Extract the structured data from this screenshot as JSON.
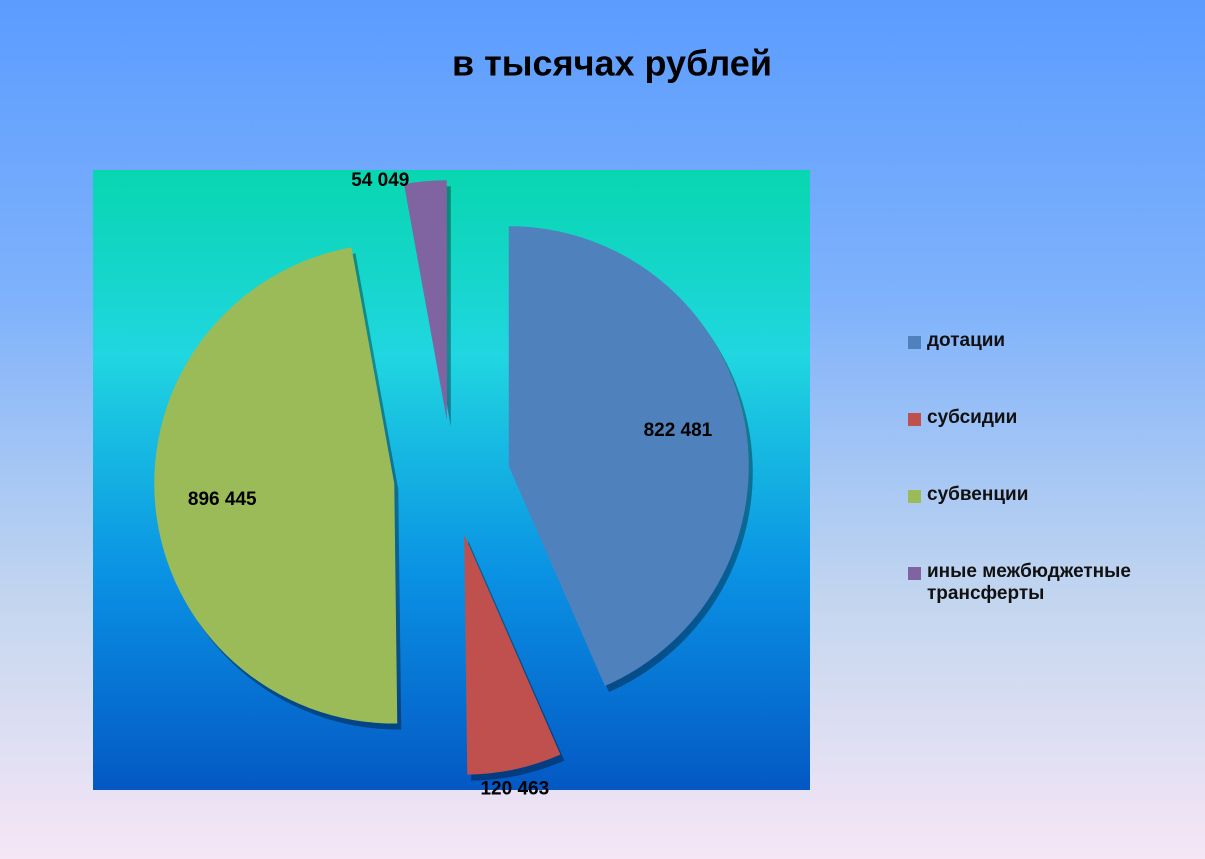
{
  "chart_data": {
    "type": "pie",
    "subtitle": "в тысячах рублей",
    "categories": [
      "дотации",
      "субсидии",
      "субвенции",
      "иные межбюджетные трансферты"
    ],
    "values": [
      822481,
      120463,
      896445,
      54049
    ],
    "value_labels": [
      "822 481",
      "120 463",
      "896 445",
      "54 049"
    ],
    "colors": [
      "#4f81bd",
      "#c0504d",
      "#9bbb59",
      "#8064a2"
    ],
    "legend": "right"
  }
}
